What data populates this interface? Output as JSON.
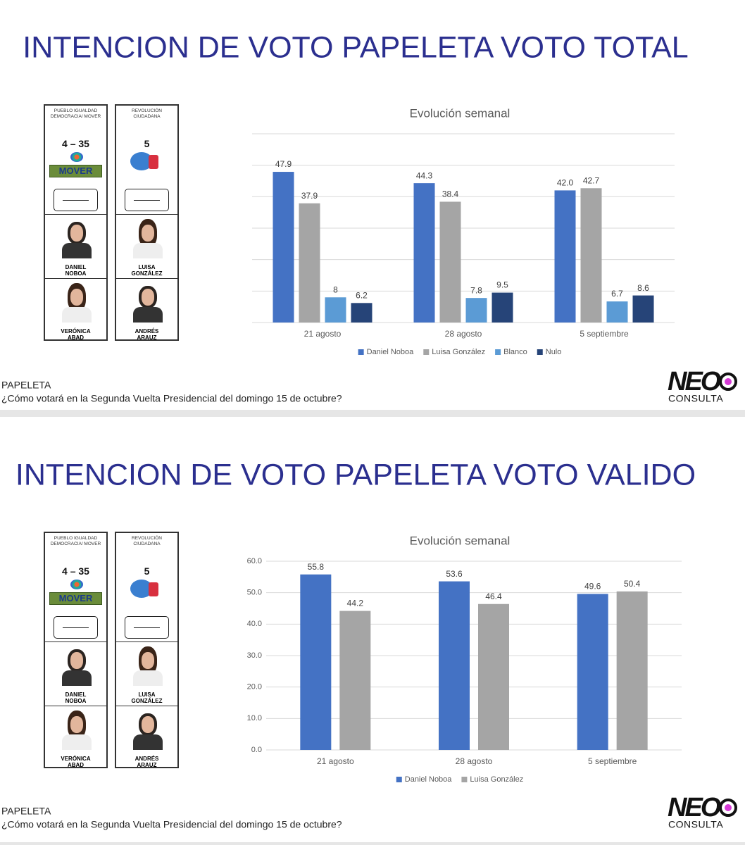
{
  "slides": [
    {
      "heading": "INTENCION DE VOTO PAPELETA VOTO TOTAL",
      "ballot": [
        {
          "party": "PUEBLO IGUALDAD DEMOCRACIA/ MOVER",
          "list": "4 – 35",
          "logo": "MOVER",
          "candidates": [
            "DANIEL NOBOA",
            "VERÓNICA ABAD"
          ]
        },
        {
          "party": "REVOLUCIÓN CIUDADANA",
          "list": "5",
          "candidates": [
            "LUISA GONZÁLEZ",
            "ANDRÉS ARAUZ"
          ]
        }
      ],
      "footer_label": "PAPELETA",
      "question": "¿Cómo votará en la Segunda Vuelta Presidencial del domingo 15 de octubre?",
      "logo": {
        "name": "NEO",
        "tagline": "CONSULTA"
      }
    },
    {
      "heading": "INTENCION DE VOTO PAPELETA VOTO VALIDO",
      "ballot": [
        {
          "party": "PUEBLO IGUALDAD DEMOCRACIA/ MOVER",
          "list": "4 – 35",
          "logo": "MOVER",
          "candidates": [
            "DANIEL NOBOA",
            "VERÓNICA ABAD"
          ]
        },
        {
          "party": "REVOLUCIÓN CIUDADANA",
          "list": "5",
          "candidates": [
            "LUISA GONZÁLEZ",
            "ANDRÉS ARAUZ"
          ]
        }
      ],
      "footer_label": "PAPELETA",
      "question": "¿Cómo votará en la Segunda Vuelta Presidencial del domingo 15 de octubre?",
      "logo": {
        "name": "NEO",
        "tagline": "CONSULTA"
      }
    }
  ],
  "chart_data": [
    {
      "type": "bar",
      "title": "Evolución semanal",
      "categories": [
        "21 agosto",
        "28 agosto",
        "5 septiembre"
      ],
      "series": [
        {
          "name": "Daniel Noboa",
          "color": "#4472c4",
          "values": [
            47.9,
            44.3,
            42.0
          ],
          "value_labels": [
            "47.9",
            "44.3",
            "42.0"
          ]
        },
        {
          "name": "Luisa González",
          "color": "#a5a5a5",
          "values": [
            37.9,
            38.4,
            42.7
          ]
        },
        {
          "name": "Blanco",
          "color": "#5b9bd5",
          "values": [
            8,
            7.8,
            6.7
          ]
        },
        {
          "name": "Nulo",
          "color": "#264478",
          "values": [
            6.2,
            9.5,
            8.6
          ]
        }
      ],
      "ylim": [
        0,
        60
      ],
      "yticks": [
        0,
        10,
        20,
        30,
        40,
        50,
        60
      ],
      "ytick_labels": false,
      "grid": true,
      "legend": "bottom"
    },
    {
      "type": "bar",
      "title": "Evolución semanal",
      "categories": [
        "21 agosto",
        "28 agosto",
        "5 septiembre"
      ],
      "series": [
        {
          "name": "Daniel Noboa",
          "color": "#4472c4",
          "values": [
            55.8,
            53.6,
            49.6
          ]
        },
        {
          "name": "Luisa González",
          "color": "#a5a5a5",
          "values": [
            44.2,
            46.4,
            50.4
          ]
        }
      ],
      "ylim": [
        0,
        60
      ],
      "yticks": [
        {
          "value": 0,
          "label": "0.0"
        },
        {
          "value": 10,
          "label": "10.0"
        },
        {
          "value": 20,
          "label": "20.0"
        },
        {
          "value": 30,
          "label": "30.0"
        },
        {
          "value": 40,
          "label": "40.0"
        },
        {
          "value": 50,
          "label": "50.0"
        },
        {
          "value": 60,
          "label": "60.0"
        }
      ],
      "ytick_labels": true,
      "grid": true,
      "legend": "bottom"
    }
  ]
}
